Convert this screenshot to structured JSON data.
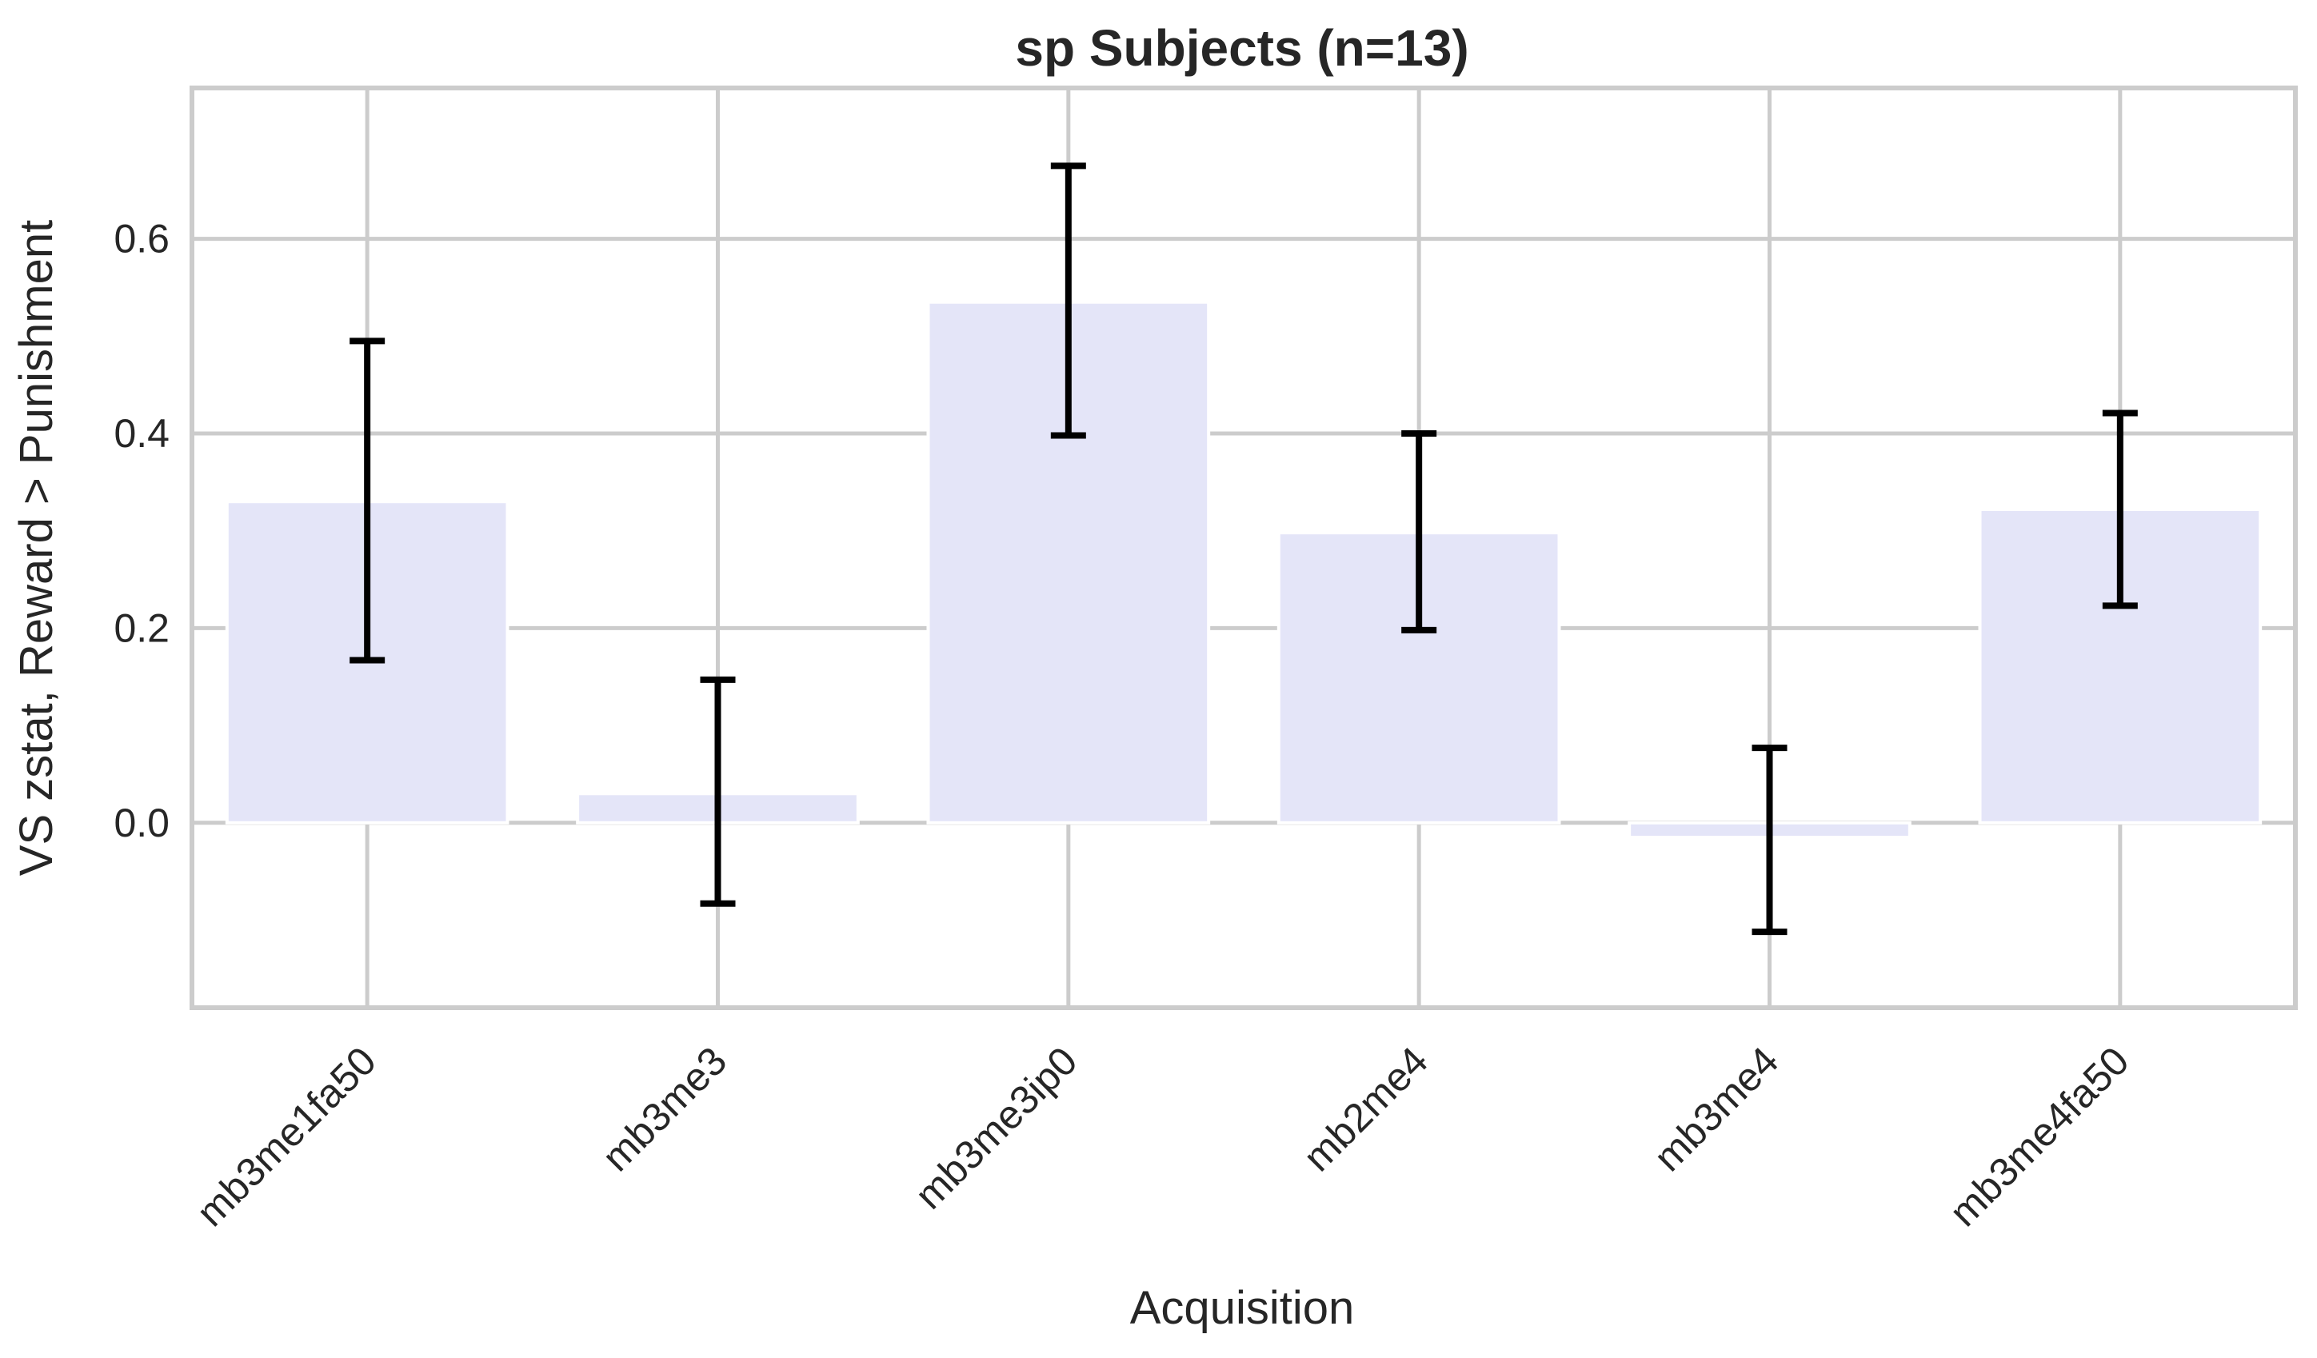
{
  "chart_data": {
    "type": "bar",
    "title": "sp Subjects (n=13)",
    "xlabel": "Acquisition",
    "ylabel": "VS zstat, Reward > Punishment",
    "categories": [
      "mb3me1fa50",
      "mb3me3",
      "mb3me3ip0",
      "mb2me4",
      "mb3me4",
      "mb3me4fa50"
    ],
    "values": [
      0.33,
      0.03,
      0.535,
      0.298,
      -0.015,
      0.322
    ],
    "error_low": [
      0.167,
      -0.083,
      0.398,
      0.198,
      -0.112,
      0.223
    ],
    "error_high": [
      0.495,
      0.147,
      0.675,
      0.4,
      0.077,
      0.421
    ],
    "ylim": [
      -0.19,
      0.755
    ],
    "yticks": [
      "0.0",
      "0.2",
      "0.4",
      "0.6"
    ],
    "ytick_values": [
      0,
      0.2,
      0.4,
      0.6
    ],
    "grid": true,
    "colors": {
      "bar": "#e4e5f8",
      "error": "#000000",
      "grid": "#cccccc",
      "text": "#262626"
    }
  }
}
